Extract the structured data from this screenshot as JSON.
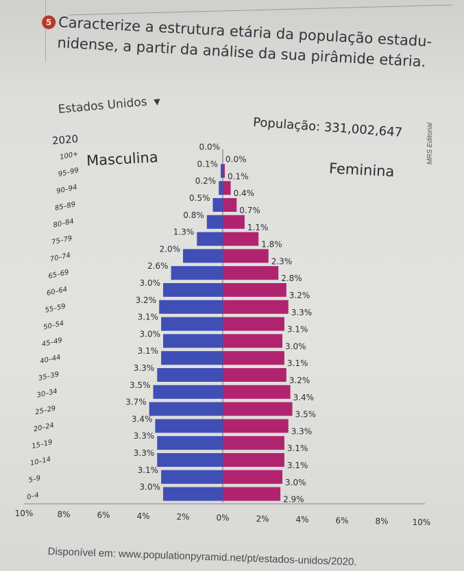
{
  "question": {
    "number": "5",
    "line1": "Caracterize a estrutura etária da população estadu-",
    "line2": "nidense, a partir da análise da sua pirâmide etária."
  },
  "credit": "MRS Editorial",
  "header": {
    "country": "Estados Unidos",
    "year": "2020",
    "population": "População: 331,002,647",
    "male_label": "Masculina",
    "female_label": "Feminina"
  },
  "source": "Disponível em: www.populationpyramid.net/pt/estados-unidos/2020.",
  "colors": {
    "male": "#3f4fb6",
    "female": "#b0246f",
    "axis": "#2e2e36"
  },
  "chart_data": {
    "type": "bar",
    "orientation": "horizontal-pyramid",
    "categories": [
      "0–4",
      "5–9",
      "10–14",
      "15–19",
      "20–24",
      "25–29",
      "30–34",
      "35–39",
      "40–44",
      "45–49",
      "50–54",
      "55–59",
      "60–64",
      "65–69",
      "70–74",
      "75–79",
      "80–84",
      "85–89",
      "90–94",
      "95–99",
      "100+"
    ],
    "series": [
      {
        "name": "Masculina",
        "labels": [
          "3.0%",
          "3.1%",
          "3.3%",
          "3.3%",
          "3.4%",
          "3.7%",
          "3.5%",
          "3.3%",
          "3.1%",
          "3.0%",
          "3.1%",
          "3.2%",
          "3.0%",
          "2.6%",
          "2.0%",
          "1.3%",
          "0.8%",
          "0.5%",
          "0.2%",
          "0.1%",
          "0.0%"
        ],
        "values": [
          3.0,
          3.1,
          3.3,
          3.3,
          3.4,
          3.7,
          3.5,
          3.3,
          3.1,
          3.0,
          3.1,
          3.2,
          3.0,
          2.6,
          2.0,
          1.3,
          0.8,
          0.5,
          0.2,
          0.1,
          0.0
        ]
      },
      {
        "name": "Feminina",
        "labels": [
          "2.9%",
          "3.0%",
          "3.1%",
          "3.1%",
          "3.3%",
          "3.5%",
          "3.4%",
          "3.2%",
          "3.1%",
          "3.0%",
          "3.1%",
          "3.3%",
          "3.2%",
          "2.8%",
          "2.3%",
          "1.8%",
          "1.1%",
          "0.7%",
          "0.4%",
          "0.1%",
          "0.0%"
        ],
        "values": [
          2.9,
          3.0,
          3.1,
          3.1,
          3.3,
          3.5,
          3.4,
          3.2,
          3.1,
          3.0,
          3.1,
          3.3,
          3.2,
          2.8,
          2.3,
          1.8,
          1.1,
          0.7,
          0.4,
          0.1,
          0.0
        ]
      }
    ],
    "x_ticks": [
      "10%",
      "8%",
      "6%",
      "4%",
      "2%",
      "0%",
      "2%",
      "4%",
      "6%",
      "8%",
      "10%"
    ],
    "xlim": [
      -10,
      10
    ],
    "title": "Estados Unidos 2020",
    "xlabel": "",
    "ylabel": ""
  }
}
